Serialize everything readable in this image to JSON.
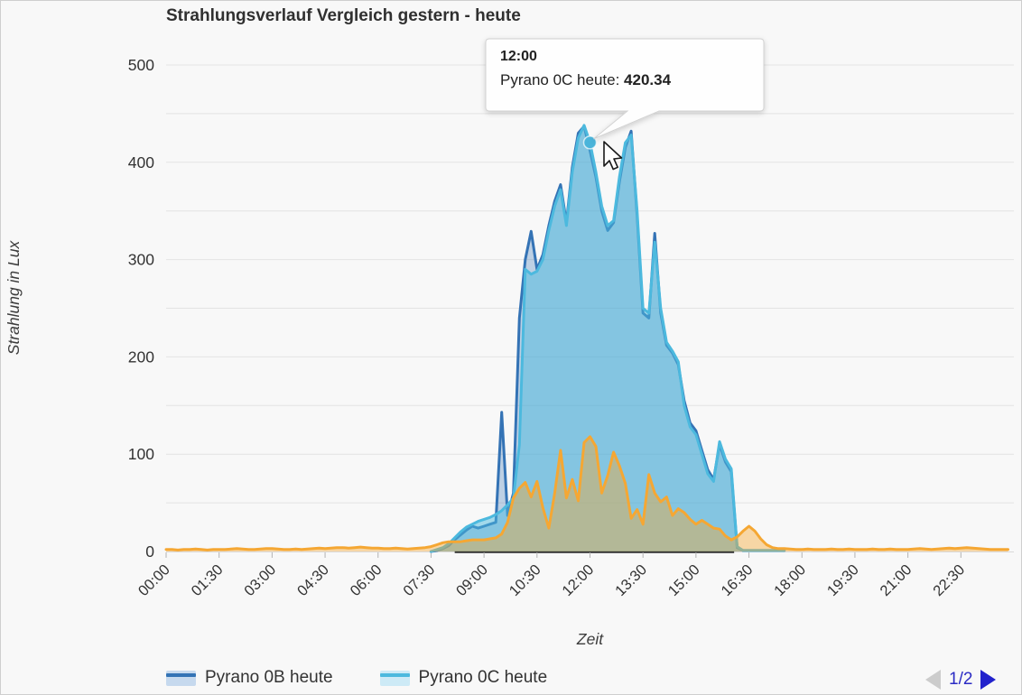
{
  "title": "Strahlungsverlauf Vergleich gestern - heute",
  "tooltip": {
    "header": "12:00",
    "series_line_prefix": "Pyrano 0C heute: ",
    "value": "420.34"
  },
  "legend": {
    "items": [
      {
        "label": "Pyrano 0B heute",
        "line_color": "#3473b5",
        "fill_color": "#c6d9ee"
      },
      {
        "label": "Pyrano 0C heute",
        "line_color": "#4cb9de",
        "fill_color": "#cdeaf6"
      }
    ],
    "pagination": {
      "current": "1/2"
    }
  },
  "chart_data": {
    "type": "area",
    "title": "Strahlungsverlauf Vergleich gestern - heute",
    "xlabel": "Zeit",
    "ylabel": "Strahlung in Lux",
    "ylim": [
      0,
      500
    ],
    "gridline_step": 50,
    "y_tick_labels": [
      "0",
      "100",
      "200",
      "300",
      "400",
      "500"
    ],
    "x_tick_labels": [
      "00:00",
      "01:30",
      "03:00",
      "04:30",
      "06:00",
      "07:30",
      "09:00",
      "10:30",
      "12:00",
      "13:30",
      "15:00",
      "16:30",
      "18:00",
      "19:30",
      "21:00",
      "22:30"
    ],
    "x_tick_step_hours": 1.5,
    "legend_position": "bottom",
    "grid": true,
    "colors": {
      "background": "#f8f8f8",
      "gridline": "#e3e3e3",
      "axis_line_light": "#d9d9d9",
      "axis_line_dark": "#2f2f2f",
      "text": "#333333",
      "pager_active": "#2222cc",
      "pager_disabled": "#cccccc"
    },
    "highlight_point": {
      "series": "Pyrano 0C heute",
      "time": "12:00",
      "hour": 12,
      "value": 420.34
    },
    "series": [
      {
        "name": "Pyrano 0B heute",
        "line_color": "#3473b5",
        "fill_opacity": 0.3,
        "start_hour": 7.5,
        "step_minutes": 10,
        "values": [
          0,
          1,
          3,
          6,
          12,
          17,
          22,
          26,
          24,
          26,
          28,
          30,
          143,
          37,
          60,
          240,
          300,
          329,
          290,
          305,
          335,
          360,
          377,
          338,
          395,
          430,
          437,
          412,
          385,
          350,
          330,
          338,
          380,
          415,
          432,
          345,
          245,
          240,
          327,
          245,
          212,
          204,
          192,
          155,
          132,
          124,
          104,
          84,
          74,
          110,
          92,
          82,
          4,
          1,
          1,
          1,
          1,
          1,
          1,
          1,
          1
        ]
      },
      {
        "name": "Pyrano 0C heute",
        "line_color": "#4cb9de",
        "fill_opacity": 0.5,
        "start_hour": 7.5,
        "step_minutes": 10,
        "values": [
          0,
          2,
          4,
          8,
          14,
          20,
          25,
          28,
          31,
          33,
          35,
          38,
          42,
          48,
          55,
          110,
          290,
          285,
          288,
          300,
          330,
          355,
          372,
          335,
          390,
          425,
          438,
          420.34,
          390,
          355,
          335,
          340,
          385,
          420,
          428,
          350,
          250,
          245,
          318,
          250,
          215,
          206,
          195,
          150,
          128,
          120,
          100,
          80,
          72,
          113,
          95,
          85,
          5,
          1,
          1,
          1,
          1,
          1,
          1,
          1,
          1
        ]
      },
      {
        "name": "",
        "line_color": "#f5a733",
        "fill_opacity": 0.42,
        "start_hour": 0,
        "step_minutes": 10,
        "values": [
          2,
          2,
          1.5,
          2,
          2,
          2.5,
          2,
          1.5,
          2,
          2,
          2,
          2.5,
          3,
          2.5,
          2,
          2,
          2.5,
          3,
          3,
          2.5,
          2,
          2,
          2.5,
          2,
          2.5,
          3,
          3.5,
          3,
          3.5,
          4,
          4,
          3.5,
          4,
          4.5,
          4,
          3.5,
          3.5,
          3,
          3,
          3.5,
          3,
          2.5,
          3,
          3.5,
          4,
          5,
          7,
          9,
          10,
          10,
          10,
          11,
          12,
          12,
          12,
          13,
          14,
          18,
          30,
          55,
          65,
          71,
          56,
          72,
          45,
          24,
          60,
          104,
          55,
          74,
          52,
          112,
          118,
          108,
          60,
          78,
          102,
          88,
          70,
          34,
          43,
          28,
          79,
          60,
          51,
          56,
          37,
          44,
          40,
          33,
          28,
          32,
          28,
          24,
          23,
          16,
          12,
          15,
          21,
          26,
          21,
          13,
          7,
          4,
          3,
          3,
          2.5,
          2,
          2,
          2.5,
          2,
          2,
          2,
          2.5,
          2,
          2,
          2.5,
          2,
          2,
          2,
          2.5,
          2,
          2,
          2.5,
          2,
          2,
          2,
          2.5,
          3,
          2.5,
          2,
          2.5,
          3,
          3.5,
          3,
          3.5,
          4,
          3.5,
          3,
          2.5,
          2,
          2,
          2,
          2
        ]
      }
    ]
  }
}
